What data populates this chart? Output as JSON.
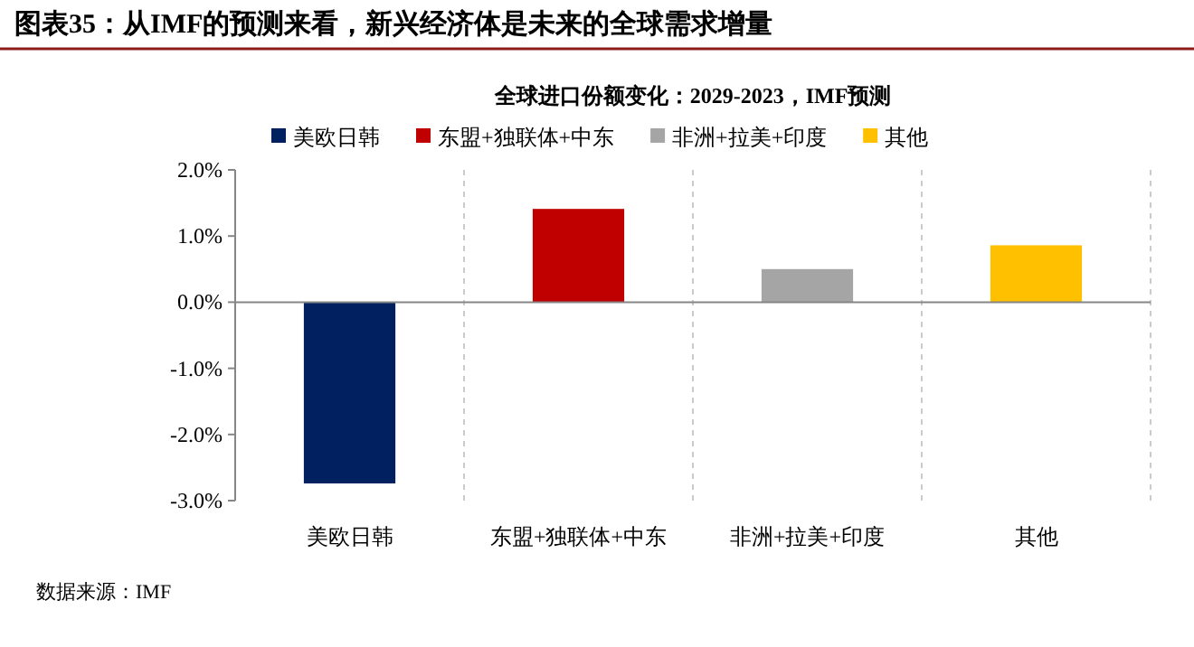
{
  "chart_data": {
    "type": "bar",
    "title": "图表35：从IMF的预测来看，新兴经济体是未来的全球需求增量",
    "subtitle": "全球进口份额变化：2029-2023，IMF预测",
    "categories": [
      "美欧日韩",
      "东盟+独联体+中东",
      "非洲+拉美+印度",
      "其他"
    ],
    "stacked": true,
    "series": [
      {
        "name": "美欧日韩",
        "color": "#002060",
        "values": [
          -2.74,
          null,
          null,
          null
        ]
      },
      {
        "name": "东盟+独联体+中东",
        "color": "#c00000",
        "values": [
          null,
          1.41,
          null,
          null
        ]
      },
      {
        "name": "非洲+拉美+印度",
        "color": "#a5a5a5",
        "values": [
          null,
          null,
          0.5,
          null
        ]
      },
      {
        "name": "其他",
        "color": "#ffc000",
        "values": [
          null,
          null,
          null,
          0.86
        ]
      }
    ],
    "ylim": [
      -3,
      2
    ],
    "yticks": [
      {
        "value": -3,
        "label": "-3.0%"
      },
      {
        "value": -2,
        "label": "-2.0%"
      },
      {
        "value": -1,
        "label": "-1.0%"
      },
      {
        "value": 0,
        "label": "0.0%"
      },
      {
        "value": 1,
        "label": "1.0%"
      },
      {
        "value": 2,
        "label": "2.0%"
      }
    ],
    "grid": "x",
    "legend": "top",
    "annotations": [
      "数据来源：IMF"
    ]
  }
}
